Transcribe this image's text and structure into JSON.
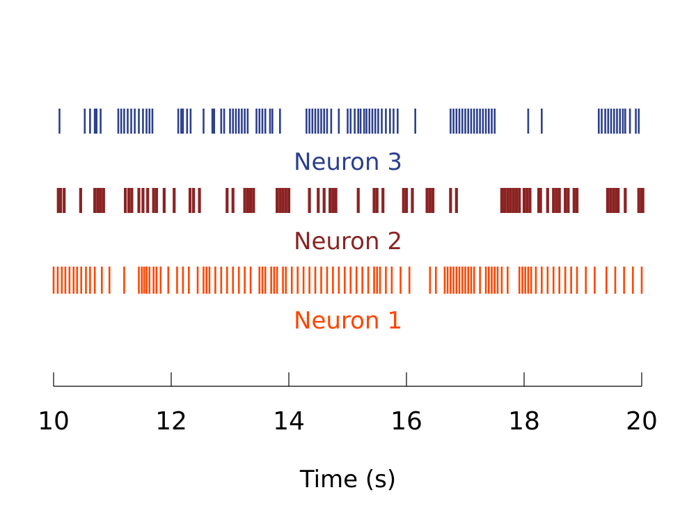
{
  "chart_data": {
    "type": "raster",
    "xlabel": "Time (s)",
    "xlim": [
      10,
      20
    ],
    "xticks": [
      10,
      12,
      14,
      16,
      18,
      20
    ],
    "tick_labels": [
      "10",
      "12",
      "14",
      "16",
      "18",
      "20"
    ],
    "series": [
      {
        "name": "Neuron 3",
        "color": "#2b3f8c",
        "spikes": [
          10.1,
          10.53,
          10.62,
          10.7,
          10.73,
          10.8,
          11.1,
          11.15,
          11.2,
          11.26,
          11.32,
          11.38,
          11.45,
          11.52,
          11.58,
          11.63,
          11.68,
          12.12,
          12.17,
          12.2,
          12.27,
          12.33,
          12.55,
          12.7,
          12.73,
          12.85,
          12.9,
          13.0,
          13.05,
          13.1,
          13.15,
          13.2,
          13.25,
          13.3,
          13.45,
          13.5,
          13.55,
          13.6,
          13.68,
          13.72,
          13.85,
          14.3,
          14.35,
          14.4,
          14.45,
          14.5,
          14.55,
          14.6,
          14.65,
          14.72,
          14.85,
          15.0,
          15.05,
          15.12,
          15.18,
          15.22,
          15.28,
          15.32,
          15.37,
          15.42,
          15.47,
          15.52,
          15.58,
          15.65,
          15.72,
          15.78,
          15.85,
          16.15,
          16.75,
          16.8,
          16.85,
          16.9,
          16.95,
          17.0,
          17.05,
          17.1,
          17.15,
          17.2,
          17.25,
          17.3,
          17.35,
          17.4,
          17.45,
          17.5,
          18.07,
          18.3,
          19.27,
          19.32,
          19.38,
          19.43,
          19.48,
          19.53,
          19.58,
          19.63,
          19.68,
          19.72,
          19.8,
          19.9,
          19.95
        ]
      },
      {
        "name": "Neuron 2",
        "color": "#8b2323",
        "spikes": [
          10.08,
          10.12,
          10.18,
          10.46,
          10.7,
          10.75,
          10.8,
          10.85,
          11.22,
          11.28,
          11.33,
          11.45,
          11.52,
          11.6,
          11.7,
          11.75,
          11.88,
          12.05,
          12.32,
          12.38,
          12.48,
          12.95,
          13.05,
          13.25,
          13.3,
          13.35,
          13.4,
          13.8,
          13.85,
          13.9,
          13.95,
          14.0,
          14.35,
          14.5,
          14.6,
          14.7,
          14.75,
          14.8,
          15.18,
          15.45,
          15.5,
          15.6,
          15.95,
          16.0,
          16.1,
          16.35,
          16.4,
          16.45,
          16.75,
          16.85,
          17.62,
          17.67,
          17.72,
          17.77,
          17.82,
          17.87,
          17.92,
          18.0,
          18.05,
          18.1,
          18.25,
          18.28,
          18.4,
          18.5,
          18.55,
          18.6,
          18.7,
          18.75,
          18.85,
          18.9,
          19.42,
          19.47,
          19.52,
          19.57,
          19.6,
          19.72,
          19.95,
          20.0,
          20.02
        ]
      },
      {
        "name": "Neuron 1",
        "color": "#ff4500",
        "spikes": [
          10.0,
          10.07,
          10.14,
          10.2,
          10.27,
          10.34,
          10.4,
          10.47,
          10.55,
          10.62,
          10.7,
          10.82,
          10.95,
          11.2,
          11.45,
          11.5,
          11.54,
          11.58,
          11.63,
          11.7,
          11.75,
          11.82,
          11.95,
          12.1,
          12.2,
          12.3,
          12.45,
          12.55,
          12.6,
          12.65,
          12.75,
          12.85,
          12.95,
          13.05,
          13.15,
          13.25,
          13.35,
          13.5,
          13.55,
          13.6,
          13.7,
          13.75,
          13.8,
          13.9,
          13.95,
          14.05,
          14.15,
          14.25,
          14.35,
          14.45,
          14.55,
          14.65,
          14.75,
          14.85,
          14.95,
          15.05,
          15.15,
          15.25,
          15.35,
          15.45,
          15.5,
          15.55,
          15.65,
          15.75,
          15.9,
          16.05,
          16.4,
          16.5,
          16.65,
          16.7,
          16.75,
          16.8,
          16.85,
          16.9,
          16.95,
          17.0,
          17.05,
          17.1,
          17.15,
          17.25,
          17.35,
          17.4,
          17.45,
          17.5,
          17.55,
          17.62,
          17.72,
          17.92,
          17.97,
          18.02,
          18.07,
          18.12,
          18.2,
          18.3,
          18.4,
          18.5,
          18.6,
          18.7,
          18.8,
          18.9,
          19.05,
          19.2,
          19.4,
          19.55,
          19.7,
          19.85,
          20.0
        ]
      }
    ]
  }
}
